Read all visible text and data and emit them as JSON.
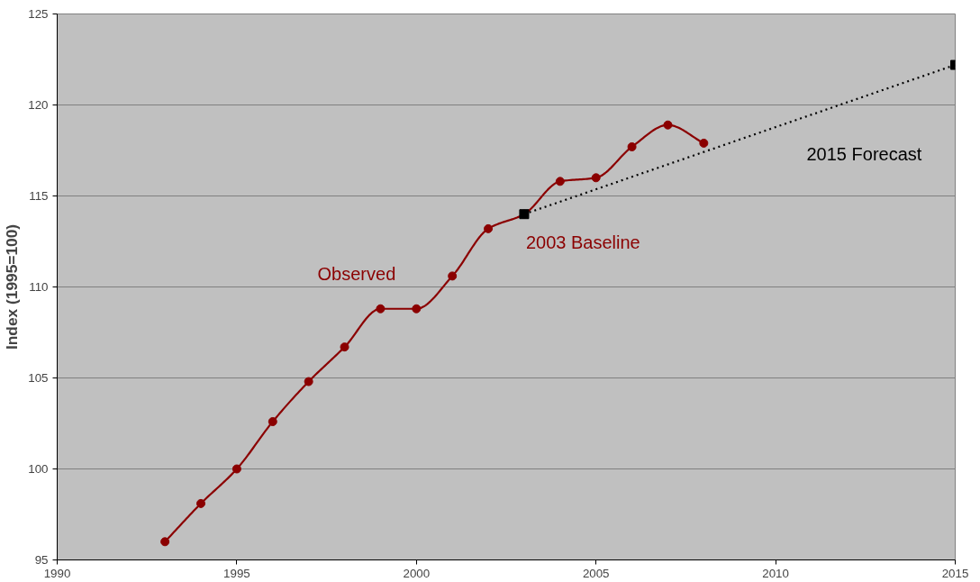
{
  "chart_data": {
    "type": "line",
    "ylabel": "Index (1995=100)",
    "xlim": [
      1990,
      2015
    ],
    "xticks": [
      1990,
      1995,
      2000,
      2005,
      2010,
      2015
    ],
    "ylim": [
      95,
      125
    ],
    "yticks": [
      95,
      100,
      105,
      110,
      115,
      120,
      125
    ],
    "grid": "y",
    "series": [
      {
        "name": "Observed",
        "color": "#8b0000",
        "marker": "circle",
        "line_style": "solid",
        "x": [
          1993,
          1994,
          1995,
          1996,
          1997,
          1998,
          1999,
          2000,
          2001,
          2002,
          2003,
          2004,
          2005,
          2006,
          2007,
          2008
        ],
        "values": [
          96.0,
          98.1,
          100.0,
          102.6,
          104.8,
          106.7,
          108.8,
          108.8,
          110.6,
          113.2,
          114.0,
          115.8,
          116.0,
          117.7,
          118.9,
          117.9
        ]
      },
      {
        "name": "2015 Forecast",
        "color": "#000000",
        "marker": "square",
        "line_style": "dotted",
        "x": [
          2003,
          2015
        ],
        "values": [
          114.0,
          122.2
        ]
      }
    ],
    "annotations": [
      {
        "text": "2003 Baseline",
        "x": 2003,
        "y": 114.0
      }
    ]
  }
}
